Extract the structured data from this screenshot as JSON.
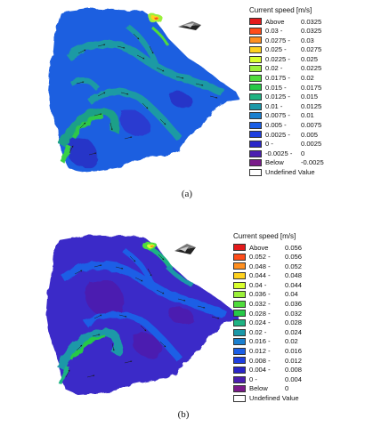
{
  "panels": [
    {
      "caption": "(a)",
      "legend": {
        "title": "Current speed [m/s]",
        "rows": [
          {
            "lo": "Above",
            "hi": "0.0325",
            "color": "#e31a1c"
          },
          {
            "lo": "0.03 -",
            "hi": "0.0325",
            "color": "#ff4d1a"
          },
          {
            "lo": "0.0275 -",
            "hi": "0.03",
            "color": "#ff8f1f"
          },
          {
            "lo": "0.025 -",
            "hi": "0.0275",
            "color": "#ffd21f"
          },
          {
            "lo": "0.0225 -",
            "hi": "0.025",
            "color": "#d9ff2e"
          },
          {
            "lo": "0.02 -",
            "hi": "0.0225",
            "color": "#9bf03a"
          },
          {
            "lo": "0.0175 -",
            "hi": "0.02",
            "color": "#4fdc3c"
          },
          {
            "lo": "0.015 -",
            "hi": "0.0175",
            "color": "#26c947"
          },
          {
            "lo": "0.0125 -",
            "hi": "0.015",
            "color": "#1fb383"
          },
          {
            "lo": "0.01 -",
            "hi": "0.0125",
            "color": "#1a98a8"
          },
          {
            "lo": "0.0075 -",
            "hi": "0.01",
            "color": "#1a7fcf"
          },
          {
            "lo": "0.005 -",
            "hi": "0.0075",
            "color": "#1b5fe6"
          },
          {
            "lo": "0.0025 -",
            "hi": "0.005",
            "color": "#1f3fe0"
          },
          {
            "lo": "0 -",
            "hi": "0.0025",
            "color": "#2a26c8"
          },
          {
            "lo": "-0.0025 -",
            "hi": "0",
            "color": "#4b1fb0"
          },
          {
            "lo": "Below",
            "hi": "-0.0025",
            "color": "#7a1a8a"
          },
          {
            "lo": "Undefined Value",
            "hi": "",
            "color": "#ffffff"
          }
        ]
      }
    },
    {
      "caption": "(b)",
      "legend": {
        "title": "Current speed [m/s]",
        "rows": [
          {
            "lo": "Above",
            "hi": "0.056",
            "color": "#e31a1c"
          },
          {
            "lo": "0.052 -",
            "hi": "0.056",
            "color": "#ff4d1a"
          },
          {
            "lo": "0.048 -",
            "hi": "0.052",
            "color": "#ff8f1f"
          },
          {
            "lo": "0.044 -",
            "hi": "0.048",
            "color": "#ffd21f"
          },
          {
            "lo": "0.04 -",
            "hi": "0.044",
            "color": "#d9ff2e"
          },
          {
            "lo": "0.036 -",
            "hi": "0.04",
            "color": "#9bf03a"
          },
          {
            "lo": "0.032 -",
            "hi": "0.036",
            "color": "#4fdc3c"
          },
          {
            "lo": "0.028 -",
            "hi": "0.032",
            "color": "#26c947"
          },
          {
            "lo": "0.024 -",
            "hi": "0.028",
            "color": "#1fb383"
          },
          {
            "lo": "0.02 -",
            "hi": "0.024",
            "color": "#1a98a8"
          },
          {
            "lo": "0.016 -",
            "hi": "0.02",
            "color": "#1a7fcf"
          },
          {
            "lo": "0.012 -",
            "hi": "0.016",
            "color": "#1b5fe6"
          },
          {
            "lo": "0.008 -",
            "hi": "0.012",
            "color": "#1f3fe0"
          },
          {
            "lo": "0.004 -",
            "hi": "0.008",
            "color": "#2a26c8"
          },
          {
            "lo": "0 -",
            "hi": "0.004",
            "color": "#4b1fb0"
          },
          {
            "lo": "Below",
            "hi": "0",
            "color": "#7a1a8a"
          },
          {
            "lo": "Undefined Value",
            "hi": "",
            "color": "#ffffff"
          }
        ]
      }
    }
  ]
}
